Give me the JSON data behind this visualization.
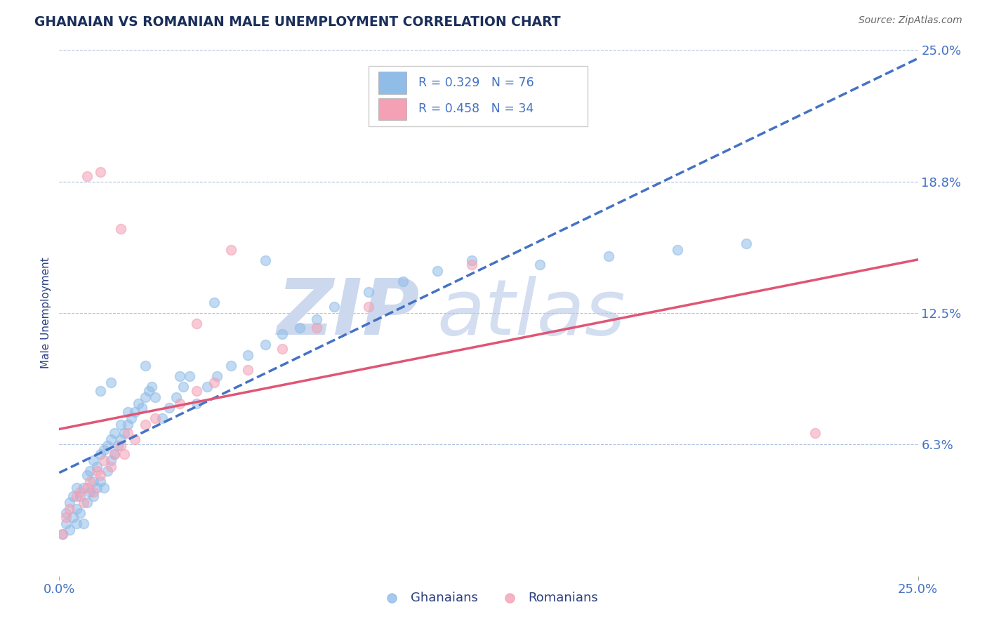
{
  "title": "GHANAIAN VS ROMANIAN MALE UNEMPLOYMENT CORRELATION CHART",
  "source": "Source: ZipAtlas.com",
  "ylabel": "Male Unemployment",
  "xlim": [
    0.0,
    0.25
  ],
  "ylim": [
    0.0,
    0.25
  ],
  "xticks": [
    0.0,
    0.25
  ],
  "xticklabels": [
    "0.0%",
    "25.0%"
  ],
  "yticks": [
    0.0625,
    0.125,
    0.1875,
    0.25
  ],
  "yticklabels": [
    "6.3%",
    "12.5%",
    "18.8%",
    "25.0%"
  ],
  "ghanaian_color": "#90bce8",
  "romanian_color": "#f4a0b5",
  "ghanaian_line_color": "#4472c4",
  "romanian_line_color": "#e05575",
  "background_color": "#ffffff",
  "grid_color": "#b0c4de",
  "title_color": "#1a2e5a",
  "axis_label_color": "#2c4080",
  "tick_color": "#4472c4",
  "R_ghanaian": 0.329,
  "N_ghanaian": 76,
  "R_romanian": 0.458,
  "N_romanian": 34,
  "ghanaian_x": [
    0.001,
    0.002,
    0.002,
    0.003,
    0.003,
    0.004,
    0.004,
    0.005,
    0.005,
    0.005,
    0.006,
    0.006,
    0.007,
    0.007,
    0.008,
    0.008,
    0.009,
    0.009,
    0.01,
    0.01,
    0.01,
    0.011,
    0.011,
    0.012,
    0.012,
    0.013,
    0.013,
    0.014,
    0.014,
    0.015,
    0.015,
    0.016,
    0.016,
    0.017,
    0.018,
    0.018,
    0.019,
    0.02,
    0.02,
    0.021,
    0.022,
    0.023,
    0.024,
    0.025,
    0.026,
    0.027,
    0.028,
    0.03,
    0.032,
    0.034,
    0.036,
    0.038,
    0.04,
    0.043,
    0.046,
    0.05,
    0.055,
    0.06,
    0.065,
    0.07,
    0.075,
    0.08,
    0.09,
    0.1,
    0.11,
    0.12,
    0.14,
    0.16,
    0.18,
    0.2,
    0.045,
    0.035,
    0.025,
    0.06,
    0.015,
    0.012
  ],
  "ghanaian_y": [
    0.02,
    0.025,
    0.03,
    0.022,
    0.035,
    0.028,
    0.038,
    0.025,
    0.032,
    0.042,
    0.03,
    0.038,
    0.025,
    0.042,
    0.035,
    0.048,
    0.04,
    0.05,
    0.038,
    0.045,
    0.055,
    0.042,
    0.052,
    0.045,
    0.058,
    0.042,
    0.06,
    0.05,
    0.062,
    0.055,
    0.065,
    0.058,
    0.068,
    0.062,
    0.065,
    0.072,
    0.068,
    0.072,
    0.078,
    0.075,
    0.078,
    0.082,
    0.08,
    0.085,
    0.088,
    0.09,
    0.085,
    0.075,
    0.08,
    0.085,
    0.09,
    0.095,
    0.082,
    0.09,
    0.095,
    0.1,
    0.105,
    0.11,
    0.115,
    0.118,
    0.122,
    0.128,
    0.135,
    0.14,
    0.145,
    0.15,
    0.148,
    0.152,
    0.155,
    0.158,
    0.13,
    0.095,
    0.1,
    0.15,
    0.092,
    0.088
  ],
  "romanian_x": [
    0.001,
    0.002,
    0.003,
    0.005,
    0.006,
    0.007,
    0.008,
    0.009,
    0.01,
    0.011,
    0.012,
    0.013,
    0.015,
    0.016,
    0.018,
    0.019,
    0.02,
    0.022,
    0.025,
    0.028,
    0.035,
    0.04,
    0.045,
    0.055,
    0.065,
    0.075,
    0.09,
    0.04,
    0.05,
    0.12,
    0.008,
    0.012,
    0.018,
    0.22
  ],
  "romanian_y": [
    0.02,
    0.028,
    0.032,
    0.038,
    0.04,
    0.035,
    0.042,
    0.045,
    0.04,
    0.05,
    0.048,
    0.055,
    0.052,
    0.058,
    0.062,
    0.058,
    0.068,
    0.065,
    0.072,
    0.075,
    0.082,
    0.088,
    0.092,
    0.098,
    0.108,
    0.118,
    0.128,
    0.12,
    0.155,
    0.148,
    0.19,
    0.192,
    0.165,
    0.068
  ],
  "watermark_color": "#ccd8ee",
  "marker_size": 100,
  "marker_alpha": 0.55,
  "line_width": 2.5
}
